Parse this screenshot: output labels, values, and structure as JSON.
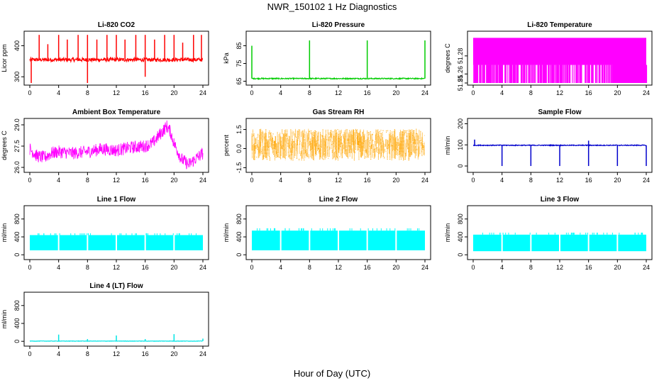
{
  "figure": {
    "title": "NWR_150102  1 Hz Diagnostics",
    "xlabel": "Hour of Day (UTC)"
  },
  "chart_data": [
    {
      "type": "line",
      "title": "Li-820 CO2",
      "ylabel": "Licor ppm",
      "color": "#FF0000",
      "xlim": [
        0,
        24
      ],
      "xticks": [
        0,
        4,
        8,
        12,
        16,
        20,
        24
      ],
      "ylim": [
        280,
        440
      ],
      "yticks": [
        300,
        400
      ],
      "baseline": 355,
      "noise": 6,
      "spikes": [
        [
          1.3,
          435
        ],
        [
          2.5,
          405
        ],
        [
          4.0,
          435
        ],
        [
          5.2,
          420
        ],
        [
          6.7,
          435
        ],
        [
          8.0,
          280
        ],
        [
          8.0,
          435
        ],
        [
          9.3,
          420
        ],
        [
          10.7,
          435
        ],
        [
          12.0,
          435
        ],
        [
          13.2,
          420
        ],
        [
          14.7,
          435
        ],
        [
          16.0,
          300
        ],
        [
          16.0,
          435
        ],
        [
          17.3,
          420
        ],
        [
          18.7,
          435
        ],
        [
          20.0,
          435
        ],
        [
          21.2,
          410
        ],
        [
          22.7,
          435
        ],
        [
          23.8,
          435
        ],
        [
          0.2,
          280
        ]
      ]
    },
    {
      "type": "line",
      "title": "Li-820 Pressure",
      "ylabel": "kPa",
      "color": "#00CC00",
      "xlim": [
        0,
        24
      ],
      "xticks": [
        0,
        4,
        8,
        12,
        16,
        20,
        24
      ],
      "ylim": [
        64,
        92
      ],
      "yticks": [
        65,
        75,
        85
      ],
      "baseline": 66.5,
      "noise": 0.3,
      "spikes": [
        [
          0.0,
          85
        ],
        [
          8.0,
          88
        ],
        [
          16.0,
          88
        ],
        [
          24.0,
          88
        ]
      ]
    },
    {
      "type": "area",
      "title": "Li-820 Temperature",
      "ylabel": "degrees C",
      "color": "#FF00FF",
      "xlim": [
        0,
        24
      ],
      "xticks": [
        0,
        4,
        8,
        12,
        16,
        20,
        24
      ],
      "ylim": [
        51.25,
        51.305
      ],
      "yticks": [
        51.25,
        51.26,
        51.28
      ],
      "ytick_labels": [
        "51.25",
        "51.26",
        "51.28"
      ],
      "upper": 51.3,
      "lower": 51.25,
      "mid": 51.27
    },
    {
      "type": "line",
      "title": "Ambient Box Temperature",
      "ylabel": "degrees C",
      "color": "#FF00FF",
      "xlim": [
        0,
        24
      ],
      "xticks": [
        0,
        4,
        8,
        12,
        16,
        20,
        24
      ],
      "ylim": [
        25.8,
        29.3
      ],
      "yticks": [
        26.0,
        27.5,
        29.0
      ],
      "ytick_labels": [
        "26.0",
        "27.5",
        "29.0"
      ],
      "x": [
        0,
        1,
        2,
        3,
        4,
        6,
        8,
        10,
        12,
        14,
        16,
        17,
        18,
        19,
        19.5,
        20,
        21,
        22,
        23,
        24
      ],
      "y": [
        27.3,
        26.8,
        26.7,
        27.0,
        27.1,
        27.0,
        27.1,
        27.3,
        27.2,
        27.4,
        27.5,
        27.7,
        28.3,
        28.9,
        28.5,
        27.7,
        26.6,
        26.2,
        26.6,
        27.0
      ],
      "band": 0.45
    },
    {
      "type": "scatter",
      "title": "Gas Stream RH",
      "ylabel": "percent",
      "color": "#FFA500",
      "xlim": [
        0,
        24
      ],
      "xticks": [
        0,
        4,
        8,
        12,
        16,
        20,
        24
      ],
      "ylim": [
        -1.7,
        2.2
      ],
      "yticks": [
        -1.5,
        0.0,
        1.5
      ],
      "ytick_labels": [
        "-1.5",
        "0.0",
        "1.5"
      ],
      "center": 0.3,
      "spread": 1.25
    },
    {
      "type": "line",
      "title": "Sample Flow",
      "ylabel": "ml/min",
      "color": "#0000CC",
      "xlim": [
        0,
        24
      ],
      "xticks": [
        0,
        4,
        8,
        12,
        16,
        20,
        24
      ],
      "ylim": [
        -20,
        215
      ],
      "yticks": [
        0,
        100,
        200
      ],
      "baseline": 98,
      "noise": 2,
      "spikes": [
        [
          0.2,
          125
        ],
        [
          4.0,
          0
        ],
        [
          8.0,
          0
        ],
        [
          12.0,
          0
        ],
        [
          16.0,
          0
        ],
        [
          16.0,
          120
        ],
        [
          20.0,
          0
        ],
        [
          24.0,
          0
        ]
      ]
    },
    {
      "type": "area",
      "title": "Line 1 Flow",
      "ylabel": "ml/min",
      "color": "#00FFFF",
      "xlim": [
        0,
        24
      ],
      "xticks": [
        0,
        4,
        8,
        12,
        16,
        20,
        24
      ],
      "ylim": [
        -60,
        1050
      ],
      "yticks": [
        0,
        400,
        800
      ],
      "upper": 440,
      "lower": 100,
      "gaps": [
        4.0,
        8.0,
        12.0,
        16.0,
        20.0
      ]
    },
    {
      "type": "area",
      "title": "Line 2 Flow",
      "ylabel": "ml/min",
      "color": "#00FFFF",
      "xlim": [
        0,
        24
      ],
      "xticks": [
        0,
        4,
        8,
        12,
        16,
        20,
        24
      ],
      "ylim": [
        -60,
        1050
      ],
      "yticks": [
        0,
        400,
        800
      ],
      "upper": 540,
      "lower": 100,
      "gaps": [
        4.0,
        8.0,
        12.0,
        16.0,
        20.0
      ]
    },
    {
      "type": "area",
      "title": "Line 3 Flow",
      "ylabel": "ml/min",
      "color": "#00FFFF",
      "xlim": [
        0,
        24
      ],
      "xticks": [
        0,
        4,
        8,
        12,
        16,
        20,
        24
      ],
      "ylim": [
        -60,
        1050
      ],
      "yticks": [
        0,
        400,
        800
      ],
      "upper": 450,
      "lower": 80,
      "gaps": [
        4.0,
        8.0,
        12.0,
        16.0,
        20.0
      ]
    },
    {
      "type": "line",
      "title": "Line 4 (LT) Flow",
      "ylabel": "ml/min",
      "color": "#00E5E5",
      "xlim": [
        0,
        24
      ],
      "xticks": [
        0,
        4,
        8,
        12,
        16,
        20,
        24
      ],
      "ylim": [
        -60,
        1050
      ],
      "yticks": [
        0,
        400,
        800
      ],
      "baseline": 5,
      "noise": 4,
      "spikes": [
        [
          4.0,
          150
        ],
        [
          8.0,
          50
        ],
        [
          12.0,
          130
        ],
        [
          16.0,
          50
        ],
        [
          20.0,
          160
        ],
        [
          24.0,
          60
        ]
      ]
    }
  ]
}
